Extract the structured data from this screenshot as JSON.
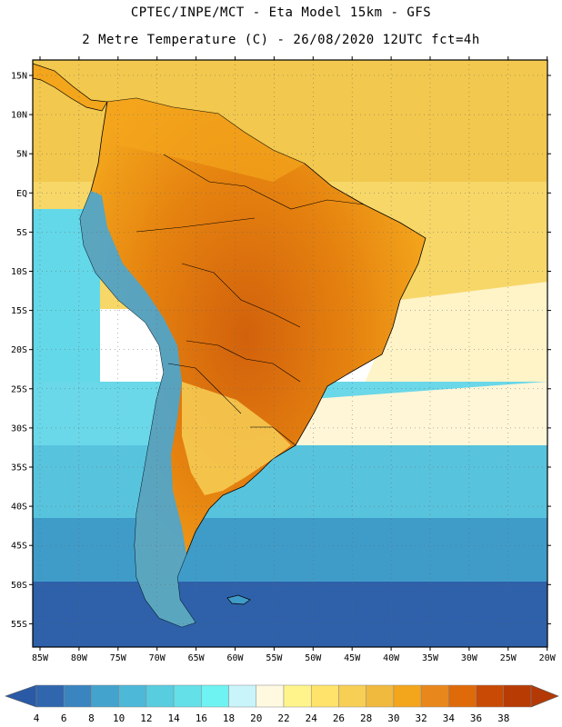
{
  "title": {
    "line1": "CPTEC/INPE/MCT -  Eta Model 15km - GFS",
    "line2": "2 Metre Temperature (C) - 26/08/2020 12UTC fct=4h"
  },
  "lat_labels": [
    "15N",
    "10N",
    "5N",
    "EQ",
    "5S",
    "10S",
    "15S",
    "20S",
    "25S",
    "30S",
    "35S",
    "40S",
    "45S",
    "50S",
    "55S"
  ],
  "lon_labels": [
    "85W",
    "80W",
    "75W",
    "70W",
    "65W",
    "60W",
    "55W",
    "50W",
    "45W",
    "40W",
    "35W",
    "30W",
    "25W",
    "20W"
  ],
  "colorbar": {
    "ticks": [
      "4",
      "6",
      "8",
      "10",
      "12",
      "14",
      "16",
      "18",
      "20",
      "22",
      "24",
      "26",
      "28",
      "30",
      "32",
      "34",
      "36",
      "38"
    ],
    "colors": [
      "#2f66ad",
      "#3a84bf",
      "#44a3cc",
      "#4db8d8",
      "#58cde0",
      "#63e0e8",
      "#6ff2f2",
      "#c8f4fa",
      "#fff9e0",
      "#fff48c",
      "#ffe36b",
      "#f7cf55",
      "#f0ba3e",
      "#f3a51c",
      "#e8871c",
      "#de6a0a",
      "#c84a04",
      "#b83b04"
    ],
    "low_color": "#2a5aa6",
    "high_color": "#b33a06"
  },
  "palette": {
    "ocean_north": "#f2c84e",
    "ocean_warm": "#f7d768",
    "ocean_mid": "#fff9e0",
    "ocean_cool": "#6ad8e8",
    "ocean_cold": "#3d8fc6",
    "ocean_far": "#2e61aa",
    "land_hot": "#d9680f",
    "land_warm": "#f3a51c",
    "land_mild": "#f7cf55",
    "andes_cold": "#4aa6d2",
    "patagonia": "#58a2d0",
    "border": "#000000",
    "grid": "#666666"
  }
}
